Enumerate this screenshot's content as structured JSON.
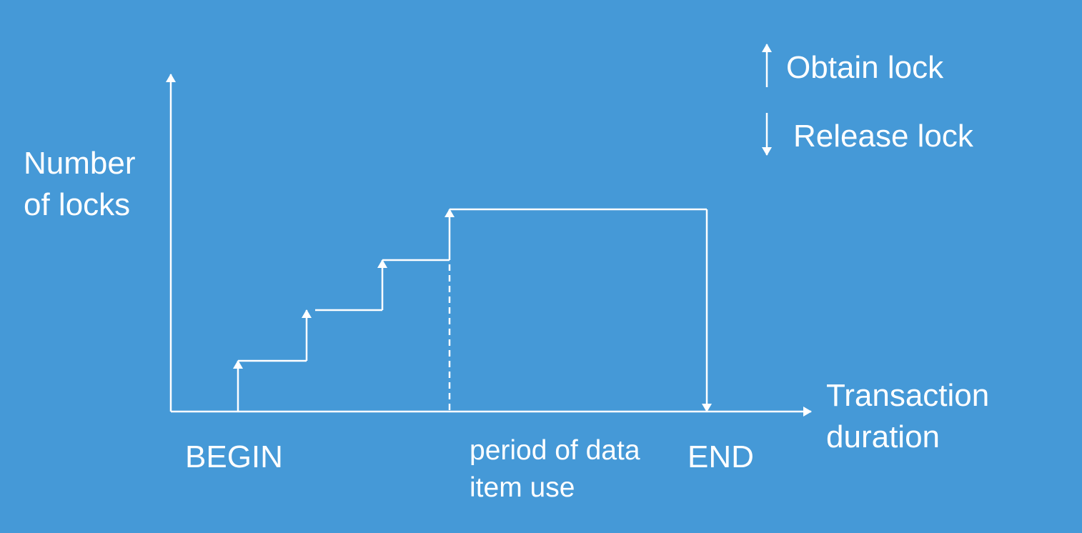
{
  "diagram": {
    "y_axis_label": [
      "Number",
      "of locks"
    ],
    "x_axis_label": [
      "Transaction",
      "duration"
    ],
    "begin_label": "BEGIN",
    "end_label": "END",
    "period_label": [
      "period of data",
      "item use"
    ],
    "legend": {
      "obtain": "Obtain lock",
      "release": "Release lock"
    },
    "colors": {
      "background": "#4599d7",
      "foreground": "#ffffff"
    }
  }
}
